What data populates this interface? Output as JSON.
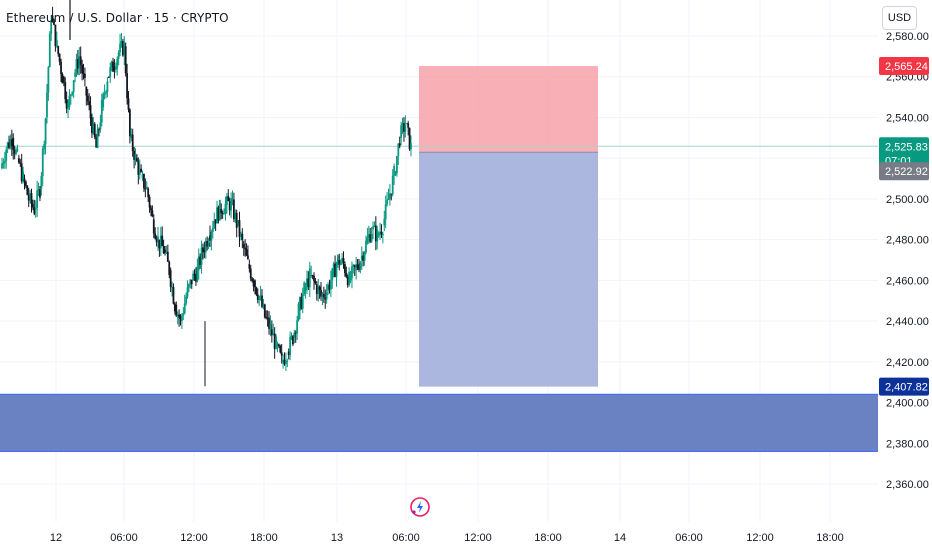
{
  "header": {
    "title": "Ethereum / U.S. Dollar · 15 · CRYPTO",
    "currency": "USD"
  },
  "colors": {
    "up": "#089981",
    "down": "#131722",
    "stop_zone": "#f7a1a8",
    "target_zone": "#a7b3dc",
    "support_zone": "#6a82c2",
    "support_border": "#4a6cf7",
    "price_line": "#a5d6c9",
    "badge_red": "#f23645",
    "badge_green": "#089981",
    "badge_gray": "#787b86",
    "badge_navy": "#0c3299"
  },
  "badges": {
    "stop": "2,565.24",
    "last_price": "2,525.83",
    "countdown": "07:01",
    "entry": "2,522.92",
    "target": "2,407.82"
  },
  "chart_data": {
    "type": "candlestick",
    "title": "Ethereum / U.S. Dollar · 15 · CRYPTO",
    "y_axis": {
      "ticks": [
        2360,
        2380,
        2400,
        2420,
        2440,
        2460,
        2480,
        2500,
        2520,
        2540,
        2560,
        2580
      ],
      "tick_labels": [
        "2,360.00",
        "2,380.00",
        "2,400.00",
        "2,420.00",
        "2,440.00",
        "2,460.00",
        "2,480.00",
        "2,500.00",
        "2,520.00",
        "2,540.00",
        "2,560.00",
        "2,580.00"
      ],
      "range": [
        2350,
        2590
      ]
    },
    "x_axis": {
      "tick_labels": [
        "12",
        "06:00",
        "12:00",
        "18:00",
        "13",
        "06:00",
        "12:00",
        "18:00",
        "14",
        "06:00",
        "12:00",
        "18:00"
      ]
    },
    "grid": true,
    "last_price": 2525.83,
    "long_short_position": {
      "direction": "short",
      "entry": 2522.92,
      "stop": 2565.24,
      "target": 2407.82
    },
    "support_zone": [
      2376,
      2404
    ],
    "price_path": [
      2515,
      2525,
      2530,
      2520,
      2510,
      2500,
      2495,
      2505,
      2540,
      2590,
      2575,
      2560,
      2545,
      2560,
      2570,
      2555,
      2540,
      2525,
      2545,
      2560,
      2565,
      2572,
      2575,
      2530,
      2520,
      2510,
      2505,
      2490,
      2480,
      2475,
      2465,
      2448,
      2440,
      2452,
      2460,
      2465,
      2475,
      2482,
      2490,
      2495,
      2497,
      2498,
      2488,
      2478,
      2468,
      2460,
      2452,
      2442,
      2436,
      2428,
      2420,
      2425,
      2432,
      2445,
      2455,
      2462,
      2458,
      2452,
      2455,
      2462,
      2470,
      2468,
      2460,
      2465,
      2470,
      2478,
      2485,
      2482,
      2487,
      2500,
      2512,
      2530,
      2537,
      2525
    ]
  }
}
